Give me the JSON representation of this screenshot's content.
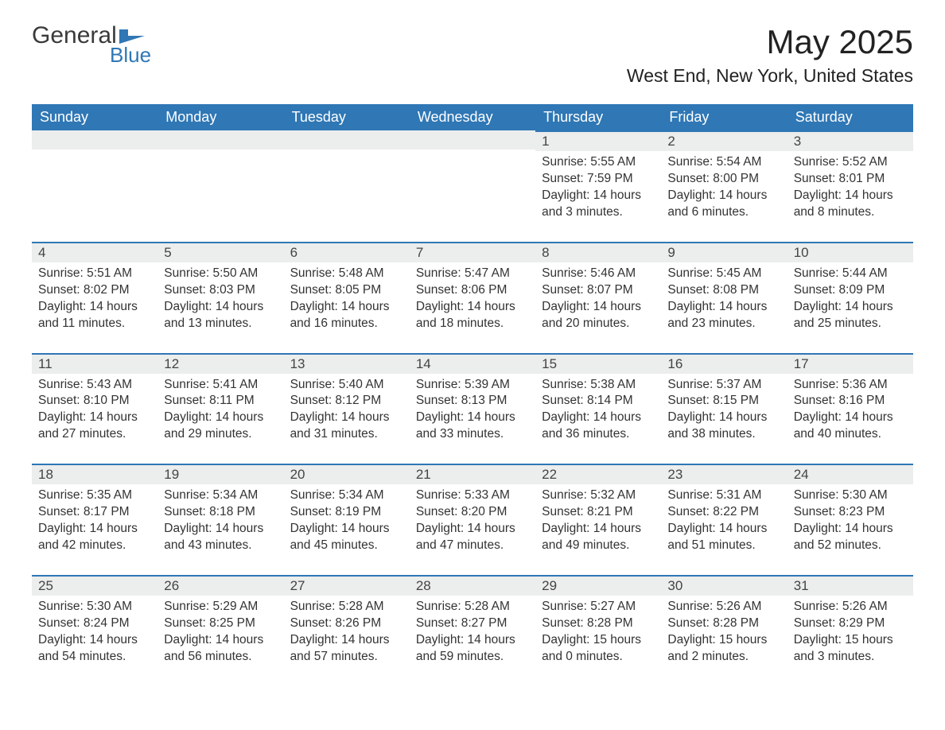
{
  "brand": {
    "word1": "General",
    "word2": "Blue"
  },
  "title": "May 2025",
  "location": "West End, New York, United States",
  "colors": {
    "accent": "#2f77b5",
    "header_bg": "#2f77b5",
    "header_text": "#ffffff",
    "daynum_bg": "#eceded",
    "body_text": "#333333",
    "page_bg": "#ffffff"
  },
  "typography": {
    "title_fontsize": 42,
    "location_fontsize": 23,
    "dayhead_fontsize": 18,
    "daynum_fontsize": 17,
    "body_fontsize": 15.5
  },
  "weekdays": [
    "Sunday",
    "Monday",
    "Tuesday",
    "Wednesday",
    "Thursday",
    "Friday",
    "Saturday"
  ],
  "weeks": [
    [
      null,
      null,
      null,
      null,
      {
        "num": "1",
        "sunrise": "Sunrise: 5:55 AM",
        "sunset": "Sunset: 7:59 PM",
        "daylight": "Daylight: 14 hours and 3 minutes."
      },
      {
        "num": "2",
        "sunrise": "Sunrise: 5:54 AM",
        "sunset": "Sunset: 8:00 PM",
        "daylight": "Daylight: 14 hours and 6 minutes."
      },
      {
        "num": "3",
        "sunrise": "Sunrise: 5:52 AM",
        "sunset": "Sunset: 8:01 PM",
        "daylight": "Daylight: 14 hours and 8 minutes."
      }
    ],
    [
      {
        "num": "4",
        "sunrise": "Sunrise: 5:51 AM",
        "sunset": "Sunset: 8:02 PM",
        "daylight": "Daylight: 14 hours and 11 minutes."
      },
      {
        "num": "5",
        "sunrise": "Sunrise: 5:50 AM",
        "sunset": "Sunset: 8:03 PM",
        "daylight": "Daylight: 14 hours and 13 minutes."
      },
      {
        "num": "6",
        "sunrise": "Sunrise: 5:48 AM",
        "sunset": "Sunset: 8:05 PM",
        "daylight": "Daylight: 14 hours and 16 minutes."
      },
      {
        "num": "7",
        "sunrise": "Sunrise: 5:47 AM",
        "sunset": "Sunset: 8:06 PM",
        "daylight": "Daylight: 14 hours and 18 minutes."
      },
      {
        "num": "8",
        "sunrise": "Sunrise: 5:46 AM",
        "sunset": "Sunset: 8:07 PM",
        "daylight": "Daylight: 14 hours and 20 minutes."
      },
      {
        "num": "9",
        "sunrise": "Sunrise: 5:45 AM",
        "sunset": "Sunset: 8:08 PM",
        "daylight": "Daylight: 14 hours and 23 minutes."
      },
      {
        "num": "10",
        "sunrise": "Sunrise: 5:44 AM",
        "sunset": "Sunset: 8:09 PM",
        "daylight": "Daylight: 14 hours and 25 minutes."
      }
    ],
    [
      {
        "num": "11",
        "sunrise": "Sunrise: 5:43 AM",
        "sunset": "Sunset: 8:10 PM",
        "daylight": "Daylight: 14 hours and 27 minutes."
      },
      {
        "num": "12",
        "sunrise": "Sunrise: 5:41 AM",
        "sunset": "Sunset: 8:11 PM",
        "daylight": "Daylight: 14 hours and 29 minutes."
      },
      {
        "num": "13",
        "sunrise": "Sunrise: 5:40 AM",
        "sunset": "Sunset: 8:12 PM",
        "daylight": "Daylight: 14 hours and 31 minutes."
      },
      {
        "num": "14",
        "sunrise": "Sunrise: 5:39 AM",
        "sunset": "Sunset: 8:13 PM",
        "daylight": "Daylight: 14 hours and 33 minutes."
      },
      {
        "num": "15",
        "sunrise": "Sunrise: 5:38 AM",
        "sunset": "Sunset: 8:14 PM",
        "daylight": "Daylight: 14 hours and 36 minutes."
      },
      {
        "num": "16",
        "sunrise": "Sunrise: 5:37 AM",
        "sunset": "Sunset: 8:15 PM",
        "daylight": "Daylight: 14 hours and 38 minutes."
      },
      {
        "num": "17",
        "sunrise": "Sunrise: 5:36 AM",
        "sunset": "Sunset: 8:16 PM",
        "daylight": "Daylight: 14 hours and 40 minutes."
      }
    ],
    [
      {
        "num": "18",
        "sunrise": "Sunrise: 5:35 AM",
        "sunset": "Sunset: 8:17 PM",
        "daylight": "Daylight: 14 hours and 42 minutes."
      },
      {
        "num": "19",
        "sunrise": "Sunrise: 5:34 AM",
        "sunset": "Sunset: 8:18 PM",
        "daylight": "Daylight: 14 hours and 43 minutes."
      },
      {
        "num": "20",
        "sunrise": "Sunrise: 5:34 AM",
        "sunset": "Sunset: 8:19 PM",
        "daylight": "Daylight: 14 hours and 45 minutes."
      },
      {
        "num": "21",
        "sunrise": "Sunrise: 5:33 AM",
        "sunset": "Sunset: 8:20 PM",
        "daylight": "Daylight: 14 hours and 47 minutes."
      },
      {
        "num": "22",
        "sunrise": "Sunrise: 5:32 AM",
        "sunset": "Sunset: 8:21 PM",
        "daylight": "Daylight: 14 hours and 49 minutes."
      },
      {
        "num": "23",
        "sunrise": "Sunrise: 5:31 AM",
        "sunset": "Sunset: 8:22 PM",
        "daylight": "Daylight: 14 hours and 51 minutes."
      },
      {
        "num": "24",
        "sunrise": "Sunrise: 5:30 AM",
        "sunset": "Sunset: 8:23 PM",
        "daylight": "Daylight: 14 hours and 52 minutes."
      }
    ],
    [
      {
        "num": "25",
        "sunrise": "Sunrise: 5:30 AM",
        "sunset": "Sunset: 8:24 PM",
        "daylight": "Daylight: 14 hours and 54 minutes."
      },
      {
        "num": "26",
        "sunrise": "Sunrise: 5:29 AM",
        "sunset": "Sunset: 8:25 PM",
        "daylight": "Daylight: 14 hours and 56 minutes."
      },
      {
        "num": "27",
        "sunrise": "Sunrise: 5:28 AM",
        "sunset": "Sunset: 8:26 PM",
        "daylight": "Daylight: 14 hours and 57 minutes."
      },
      {
        "num": "28",
        "sunrise": "Sunrise: 5:28 AM",
        "sunset": "Sunset: 8:27 PM",
        "daylight": "Daylight: 14 hours and 59 minutes."
      },
      {
        "num": "29",
        "sunrise": "Sunrise: 5:27 AM",
        "sunset": "Sunset: 8:28 PM",
        "daylight": "Daylight: 15 hours and 0 minutes."
      },
      {
        "num": "30",
        "sunrise": "Sunrise: 5:26 AM",
        "sunset": "Sunset: 8:28 PM",
        "daylight": "Daylight: 15 hours and 2 minutes."
      },
      {
        "num": "31",
        "sunrise": "Sunrise: 5:26 AM",
        "sunset": "Sunset: 8:29 PM",
        "daylight": "Daylight: 15 hours and 3 minutes."
      }
    ]
  ]
}
